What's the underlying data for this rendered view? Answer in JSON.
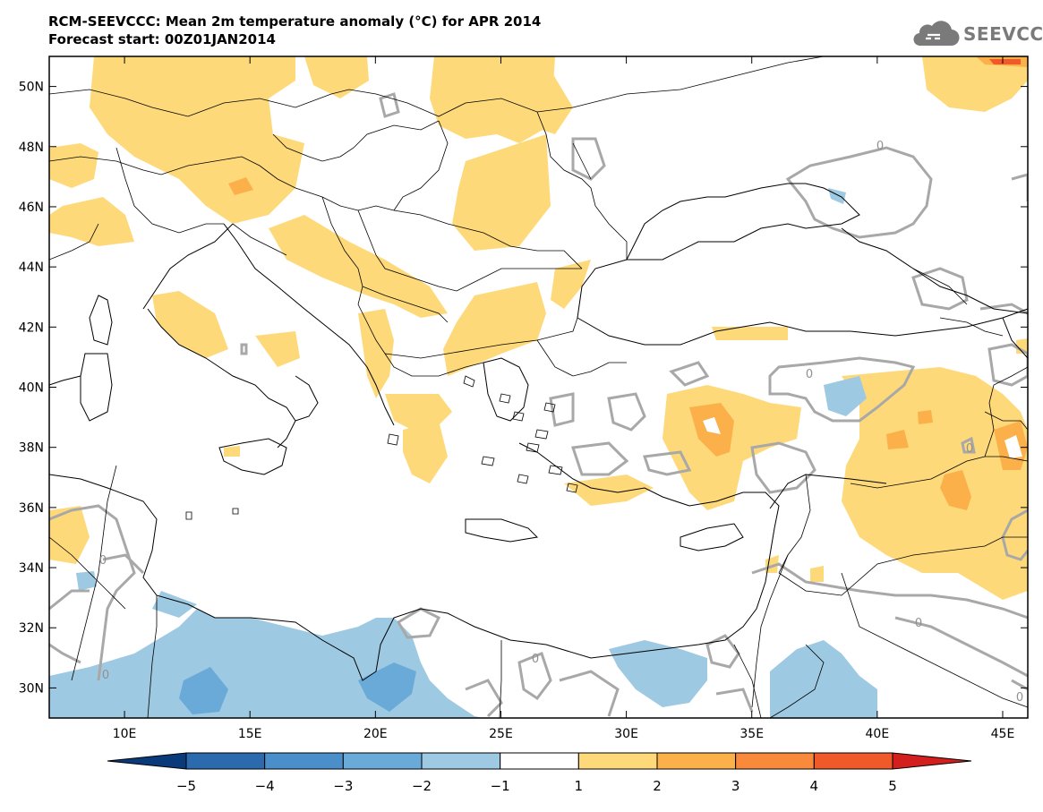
{
  "header": {
    "title_line1": "RCM-SEEVCCC: Mean 2m temperature anomaly (°C) for APR 2014",
    "title_line2": "Forecast start: 00Z01JAN2014"
  },
  "logo": {
    "text": "SEEVCCC",
    "icon": "cloud-logo-icon"
  },
  "map": {
    "lon_range": [
      7,
      46
    ],
    "lat_range": [
      29,
      51
    ],
    "lon_ticks": [
      {
        "v": 10,
        "label": "10E"
      },
      {
        "v": 15,
        "label": "15E"
      },
      {
        "v": 20,
        "label": "20E"
      },
      {
        "v": 25,
        "label": "25E"
      },
      {
        "v": 30,
        "label": "30E"
      },
      {
        "v": 35,
        "label": "35E"
      },
      {
        "v": 40,
        "label": "40E"
      },
      {
        "v": 45,
        "label": "45E"
      }
    ],
    "lat_ticks": [
      {
        "v": 30,
        "label": "30N"
      },
      {
        "v": 32,
        "label": "32N"
      },
      {
        "v": 34,
        "label": "34N"
      },
      {
        "v": 36,
        "label": "36N"
      },
      {
        "v": 38,
        "label": "38N"
      },
      {
        "v": 40,
        "label": "40N"
      },
      {
        "v": 42,
        "label": "42N"
      },
      {
        "v": 44,
        "label": "44N"
      },
      {
        "v": 46,
        "label": "46N"
      },
      {
        "v": 48,
        "label": "48N"
      },
      {
        "v": 50,
        "label": "50N"
      }
    ],
    "contour_labels": [
      "0",
      "0",
      "0",
      "0",
      "0",
      "0",
      "0",
      "0"
    ]
  },
  "colorbar": {
    "labels": [
      "−5",
      "−4",
      "−3",
      "−2",
      "−1",
      "1",
      "2",
      "3",
      "4",
      "5"
    ],
    "colors": [
      "#0a3a7a",
      "#2a6aad",
      "#4a8fc9",
      "#6aaad8",
      "#9ec9e2",
      "#ffffff",
      "#fdd97a",
      "#fbb04a",
      "#f98a3c",
      "#f05a2a",
      "#d41f1f"
    ]
  }
}
